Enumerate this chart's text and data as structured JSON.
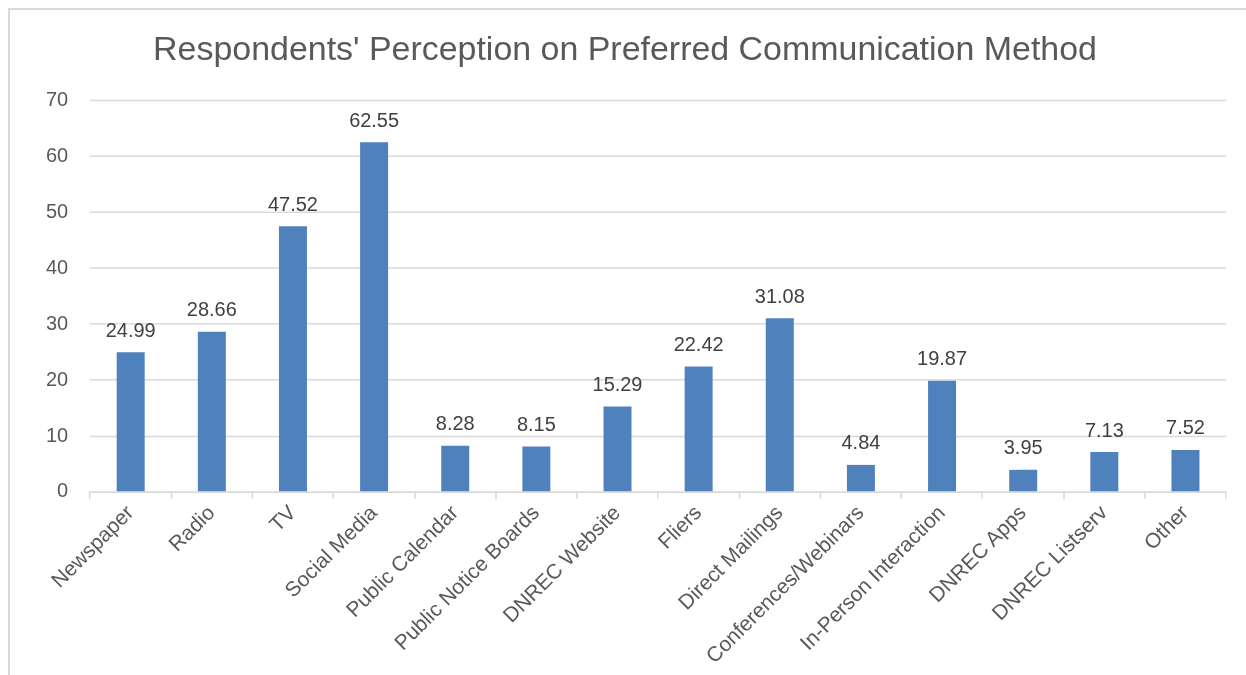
{
  "chart_data": {
    "type": "bar",
    "title": "Respondents' Perception on Preferred Communication Method",
    "categories": [
      "Newspaper",
      "Radio",
      "TV",
      "Social Media",
      "Public Calendar",
      "Public Notice Boards",
      "DNREC Website",
      "Fliers",
      "Direct Mailings",
      "Conferences/Webinars",
      "In-Person Interaction",
      "DNREC Apps",
      "DNREC Listserv",
      "Other"
    ],
    "values": [
      24.99,
      28.66,
      47.52,
      62.55,
      8.28,
      8.15,
      15.29,
      22.42,
      31.08,
      4.84,
      19.87,
      3.95,
      7.13,
      7.52
    ],
    "color": "#4f81bd",
    "ylim": [
      0,
      70
    ],
    "yticks": [
      0,
      10,
      20,
      30,
      40,
      50,
      60,
      70
    ],
    "grid": "y",
    "legend": false,
    "data_labels": true
  }
}
